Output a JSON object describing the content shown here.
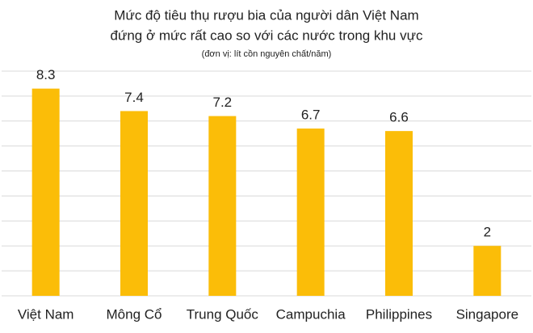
{
  "chart_data": {
    "type": "bar",
    "title": [
      "Mức độ tiêu thụ rượu bia của người dân Việt Nam",
      "đứng ở mức rất cao so với các nước trong khu vực"
    ],
    "subtitle": "(đơn vị: lít cồn nguyên chất/năm)",
    "categories": [
      "Việt Nam",
      "Mông Cổ",
      "Trung Quốc",
      "Campuchia",
      "Philippines",
      "Singapore"
    ],
    "values": [
      8.3,
      7.4,
      7.2,
      6.7,
      6.6,
      2
    ],
    "color": "#fbbd08",
    "ylim": [
      0,
      9
    ],
    "yticks": [
      0,
      1,
      2,
      3,
      4,
      5,
      6,
      7,
      8,
      9
    ],
    "grid": true
  }
}
